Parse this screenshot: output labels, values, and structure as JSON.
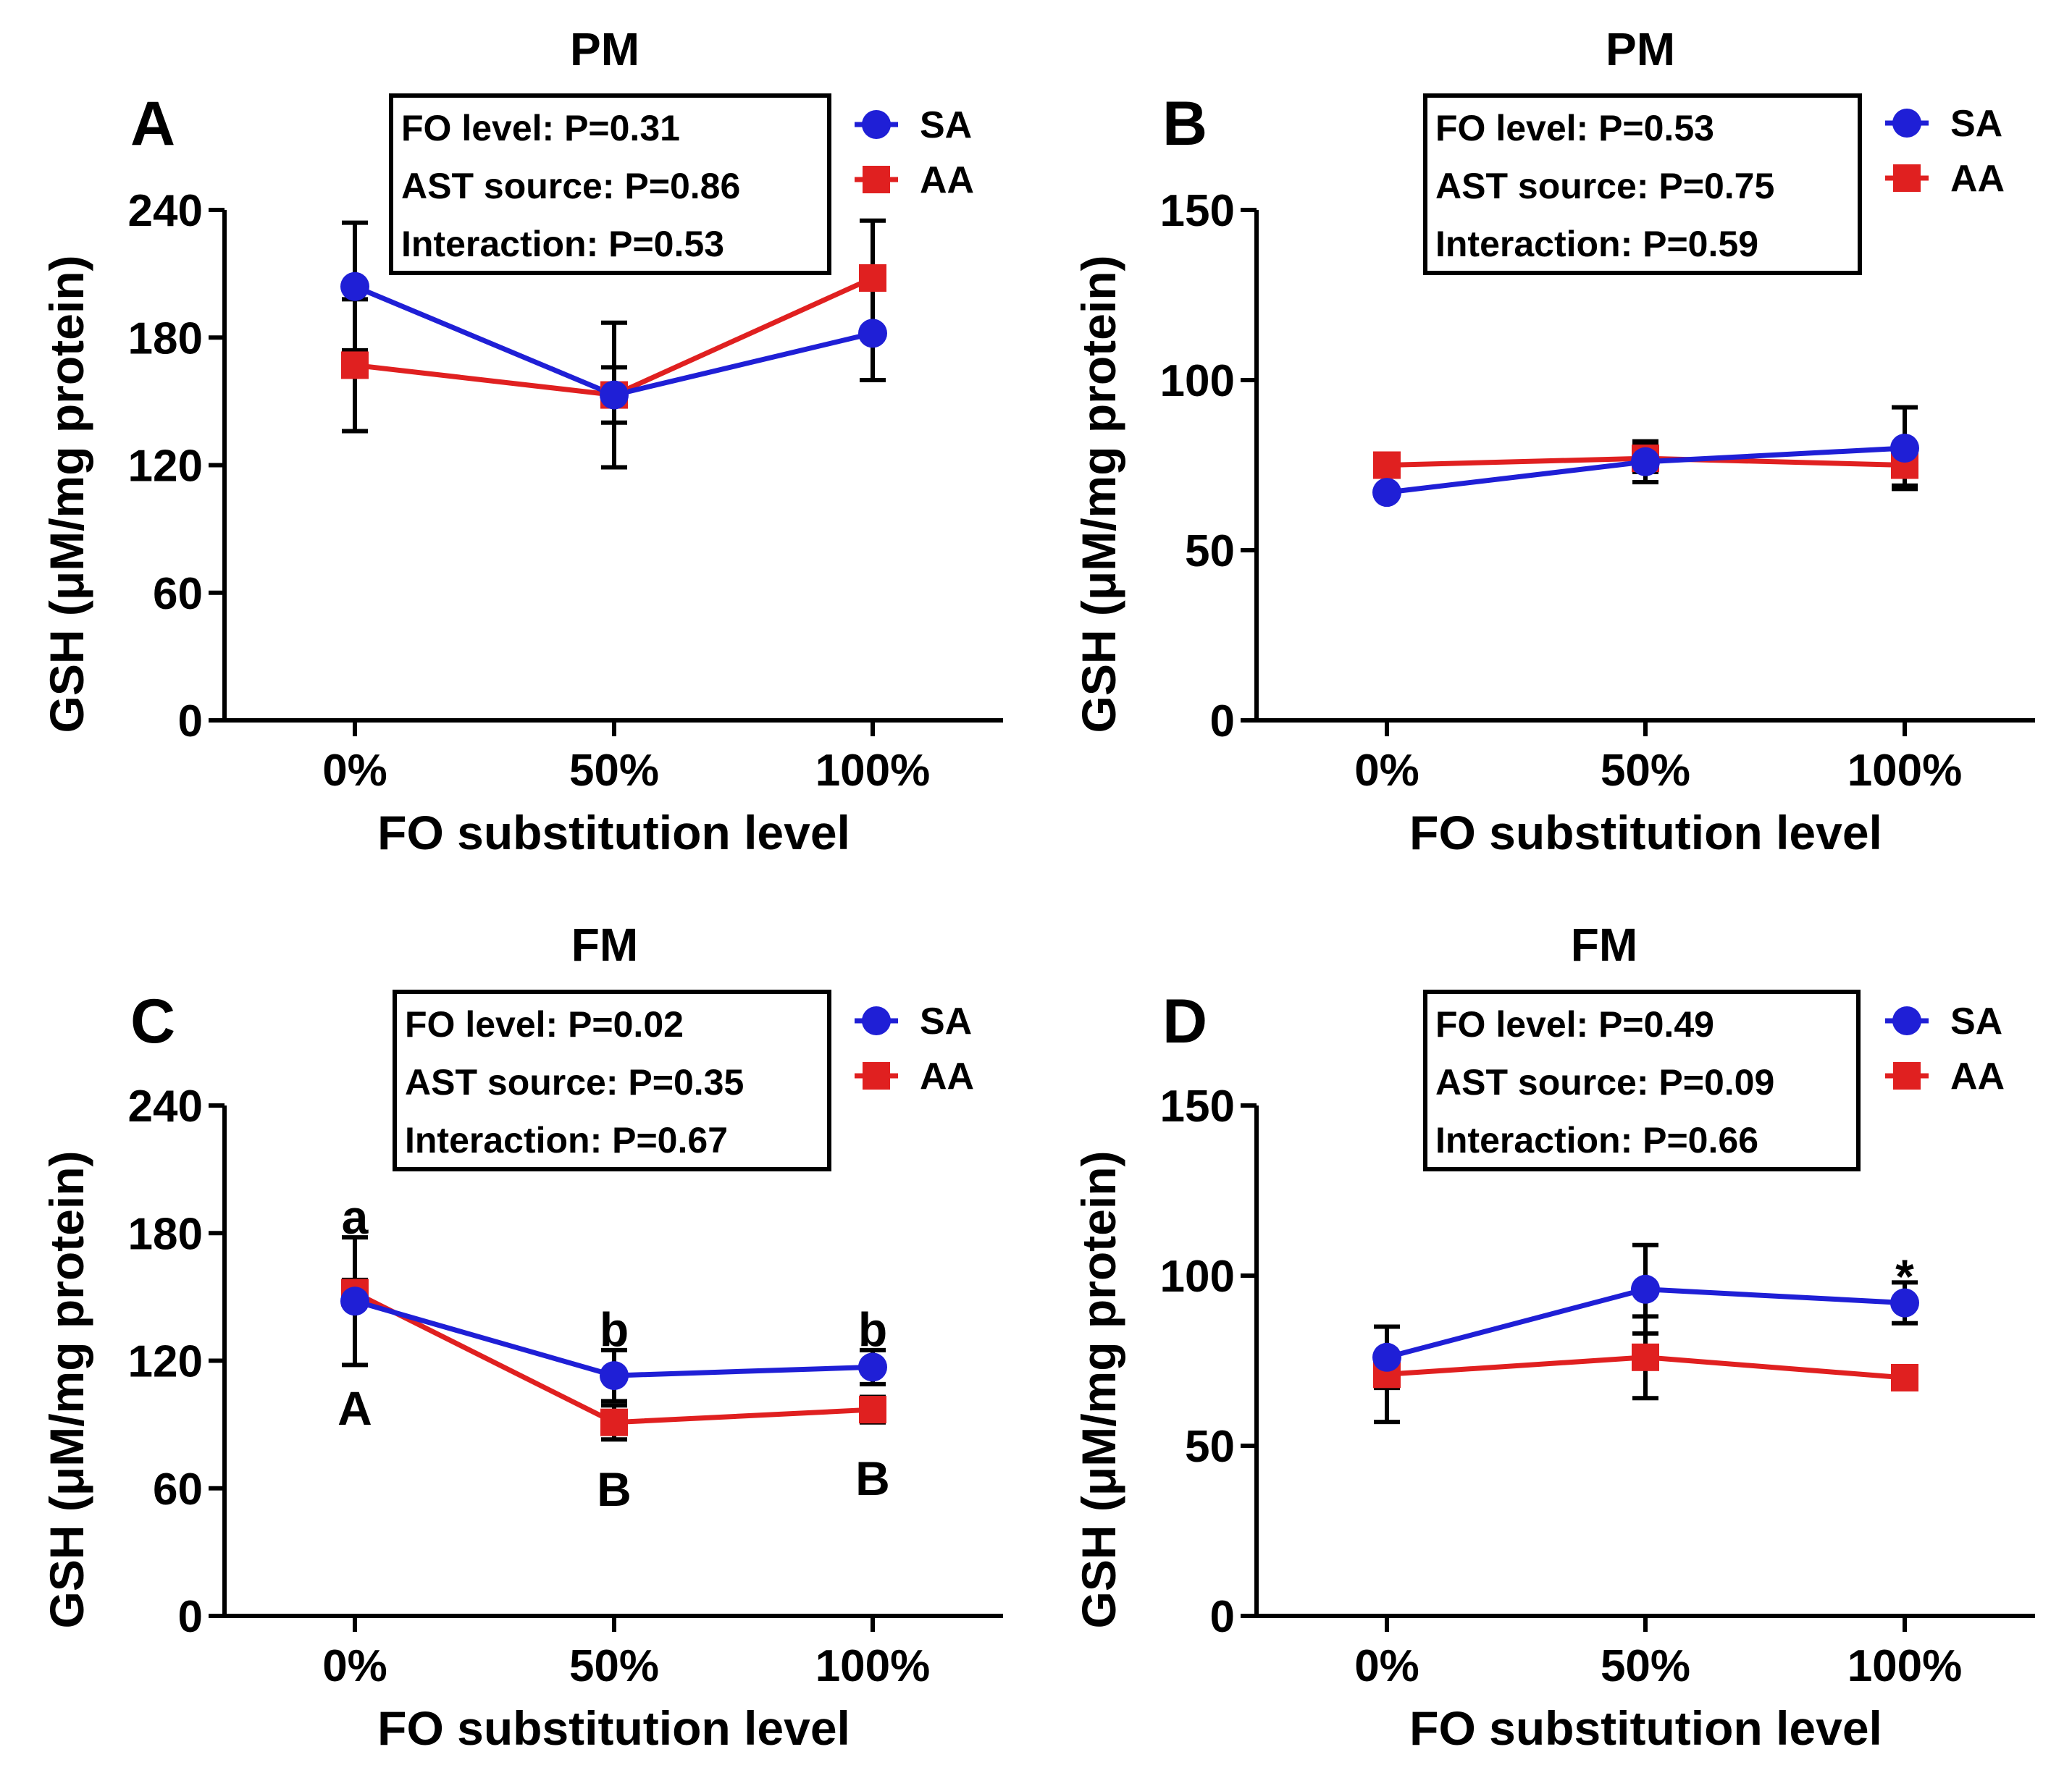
{
  "colors": {
    "SA": "#1f1fd6",
    "AA": "#e02020"
  },
  "chart_data": [
    {
      "id": "A",
      "type": "line",
      "title": "PM",
      "panel_label": "A",
      "xlabel": "FO substitution level",
      "ylabel": "GSH (μM/mg protein)",
      "categories": [
        "0%",
        "50%",
        "100%"
      ],
      "ylim": [
        0,
        240
      ],
      "yticks": [
        0,
        60,
        120,
        180,
        240
      ],
      "series": [
        {
          "name": "SA",
          "marker": "circle",
          "values": [
            204,
            153,
            182
          ],
          "err": [
            30,
            34,
            22
          ]
        },
        {
          "name": "AA",
          "marker": "square",
          "values": [
            167,
            153,
            208
          ],
          "err": [
            31,
            13,
            27
          ]
        }
      ],
      "stats": [
        "FO level: P=0.31",
        "AST source: P=0.86",
        "Interaction: P=0.53"
      ],
      "annotations": []
    },
    {
      "id": "B",
      "type": "line",
      "title": "PM",
      "panel_label": "B",
      "xlabel": "FO substitution level",
      "ylabel": "GSH (μM/mg protein)",
      "categories": [
        "0%",
        "50%",
        "100%"
      ],
      "ylim": [
        0,
        150
      ],
      "yticks": [
        0,
        50,
        100,
        150
      ],
      "series": [
        {
          "name": "SA",
          "marker": "circle",
          "values": [
            67,
            76,
            80
          ],
          "err": [
            0,
            6,
            12
          ]
        },
        {
          "name": "AA",
          "marker": "square",
          "values": [
            75,
            77,
            75
          ],
          "err": [
            3,
            4,
            6
          ]
        }
      ],
      "stats": [
        "FO level: P=0.53",
        "AST source: P=0.75",
        "Interaction: P=0.59"
      ],
      "annotations": []
    },
    {
      "id": "C",
      "type": "line",
      "title": "FM",
      "panel_label": "C",
      "xlabel": "FO substitution level",
      "ylabel": "GSH (μM/mg protein)",
      "categories": [
        "0%",
        "50%",
        "100%"
      ],
      "ylim": [
        0,
        240
      ],
      "yticks": [
        0,
        60,
        120,
        180,
        240
      ],
      "series": [
        {
          "name": "SA",
          "marker": "circle",
          "values": [
            148,
            113,
            117
          ],
          "err": [
            30,
            12,
            8
          ]
        },
        {
          "name": "AA",
          "marker": "square",
          "values": [
            152,
            91,
            97
          ],
          "err": [
            6,
            8,
            6
          ]
        }
      ],
      "stats": [
        "FO level: P=0.02",
        "AST source: P=0.35",
        "Interaction: P=0.67"
      ],
      "annotations": [
        {
          "text": "a",
          "x": 0,
          "y": 188
        },
        {
          "text": "A",
          "x": 0,
          "y": 98
        },
        {
          "text": "b",
          "x": 1,
          "y": 135
        },
        {
          "text": "B",
          "x": 1,
          "y": 60
        },
        {
          "text": "b",
          "x": 2,
          "y": 135
        },
        {
          "text": "B",
          "x": 2,
          "y": 65
        }
      ]
    },
    {
      "id": "D",
      "type": "line",
      "title": "FM",
      "panel_label": "D",
      "xlabel": "FO substitution level",
      "ylabel": "GSH (μM/mg protein)",
      "categories": [
        "0%",
        "50%",
        "100%"
      ],
      "ylim": [
        0,
        150
      ],
      "yticks": [
        0,
        50,
        100,
        150
      ],
      "series": [
        {
          "name": "SA",
          "marker": "circle",
          "values": [
            76,
            96,
            92
          ],
          "err": [
            9,
            13,
            6
          ]
        },
        {
          "name": "AA",
          "marker": "square",
          "values": [
            71,
            76,
            70
          ],
          "err": [
            14,
            12,
            0
          ]
        }
      ],
      "stats": [
        "FO level: P=0.49",
        "AST source: P=0.09",
        "Interaction: P=0.66"
      ],
      "annotations": [
        {
          "text": "*",
          "x": 2,
          "y": 100
        }
      ]
    }
  ]
}
